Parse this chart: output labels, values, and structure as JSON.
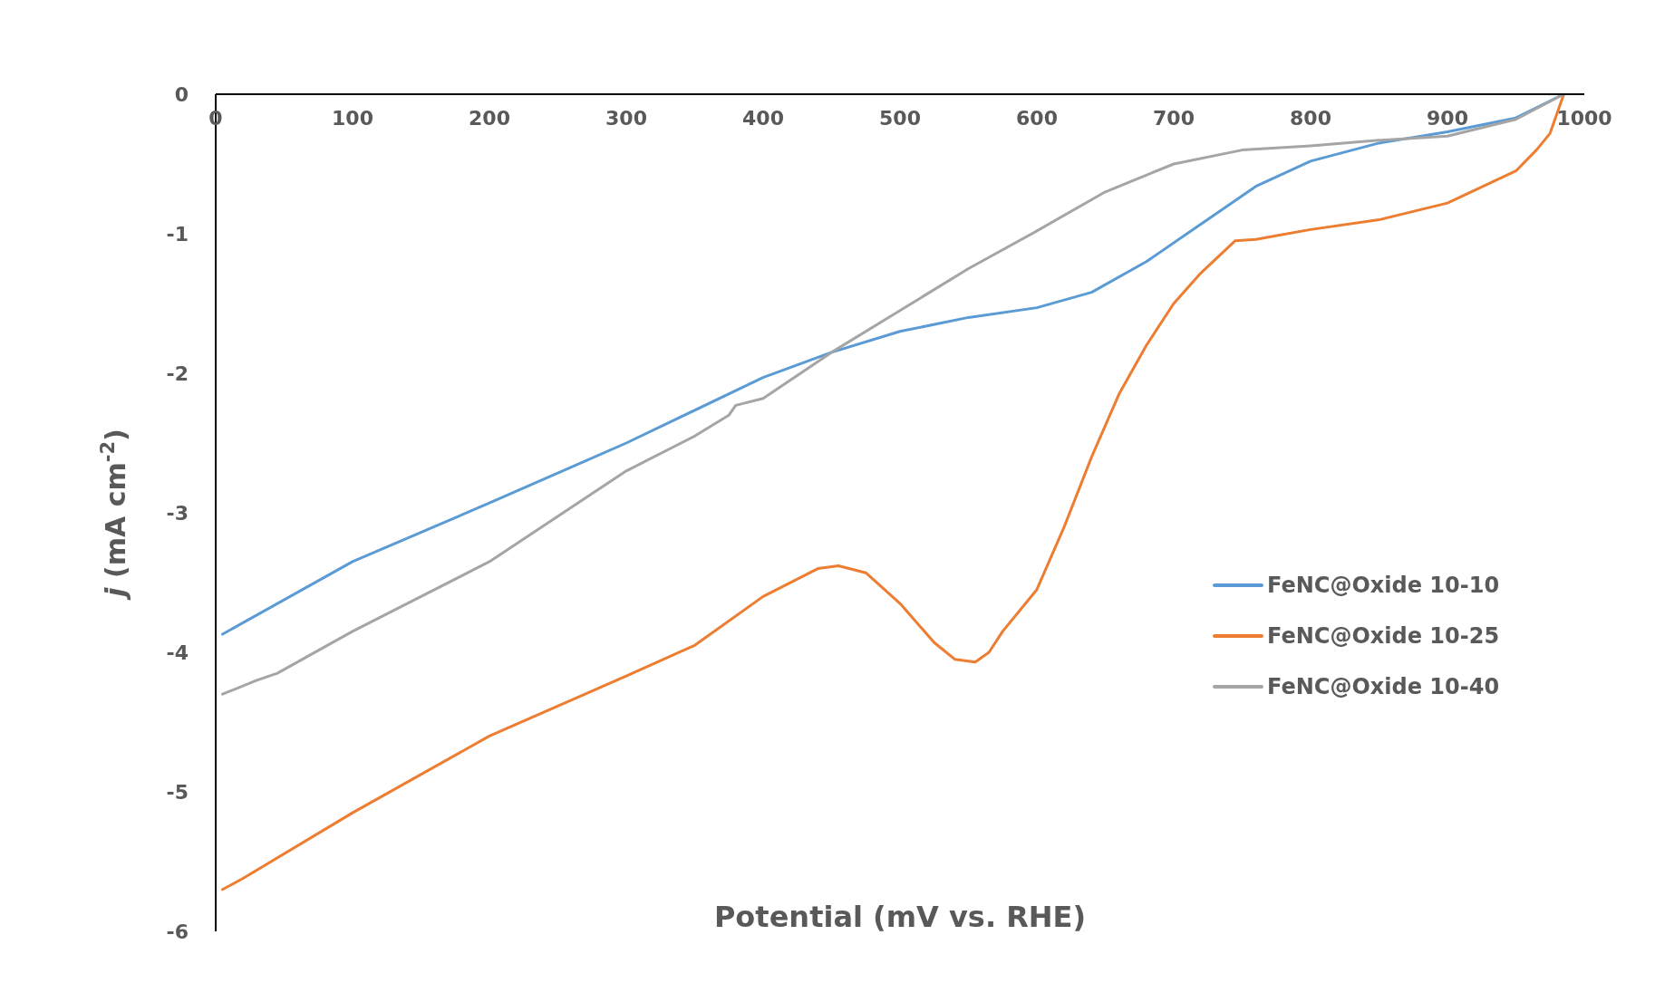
{
  "chart_data": {
    "type": "line",
    "xlabel": "Potential (mV vs. RHE)",
    "ylabel": "j (mA cm$^{-2}$)",
    "xlim": [
      0,
      1000
    ],
    "xticks": [
      0,
      100,
      200,
      300,
      400,
      500,
      600,
      700,
      800,
      900,
      1000
    ],
    "ylim": [
      -6,
      0
    ],
    "yticks": [
      -6,
      -5,
      -4,
      -3,
      -2,
      -1,
      0
    ],
    "grid": false,
    "legend": "right",
    "marker": "none",
    "line_style": "solid",
    "series": [
      {
        "name": "FeNC@Oxide 10-10",
        "color": "#5b9bd5",
        "x": [
          5,
          100,
          200,
          300,
          400,
          450,
          500,
          550,
          600,
          640,
          680,
          720,
          760,
          800,
          850,
          900,
          950,
          985
        ],
        "values": [
          -3.87,
          -3.35,
          -2.93,
          -2.5,
          -2.03,
          -1.85,
          -1.7,
          -1.6,
          -1.53,
          -1.42,
          -1.2,
          -0.93,
          -0.66,
          -0.48,
          -0.35,
          -0.27,
          -0.17,
          0
        ]
      },
      {
        "name": "FeNC@Oxide 10-25",
        "color": "#ed7d31",
        "x": [
          5,
          20,
          100,
          200,
          300,
          350,
          400,
          440,
          455,
          475,
          500,
          525,
          540,
          555,
          565,
          575,
          600,
          620,
          640,
          660,
          680,
          700,
          720,
          745,
          760,
          800,
          850,
          900,
          950,
          965,
          975,
          985
        ],
        "values": [
          -5.7,
          -5.62,
          -5.15,
          -4.6,
          -4.17,
          -3.95,
          -3.6,
          -3.4,
          -3.38,
          -3.43,
          -3.65,
          -3.93,
          -4.05,
          -4.07,
          -4.0,
          -3.85,
          -3.55,
          -3.1,
          -2.6,
          -2.15,
          -1.8,
          -1.5,
          -1.28,
          -1.05,
          -1.04,
          -0.97,
          -0.9,
          -0.78,
          -0.55,
          -0.4,
          -0.28,
          0
        ]
      },
      {
        "name": "FeNC@Oxide 10-40",
        "color": "#a5a5a5",
        "x": [
          5,
          30,
          45,
          100,
          200,
          300,
          350,
          375,
          380,
          400,
          450,
          500,
          550,
          600,
          650,
          700,
          750,
          800,
          850,
          900,
          950,
          985
        ],
        "values": [
          -4.3,
          -4.2,
          -4.15,
          -3.85,
          -3.35,
          -2.7,
          -2.45,
          -2.3,
          -2.23,
          -2.18,
          -1.85,
          -1.55,
          -1.25,
          -0.98,
          -0.7,
          -0.5,
          -0.4,
          -0.37,
          -0.33,
          -0.3,
          -0.18,
          0
        ]
      }
    ]
  }
}
